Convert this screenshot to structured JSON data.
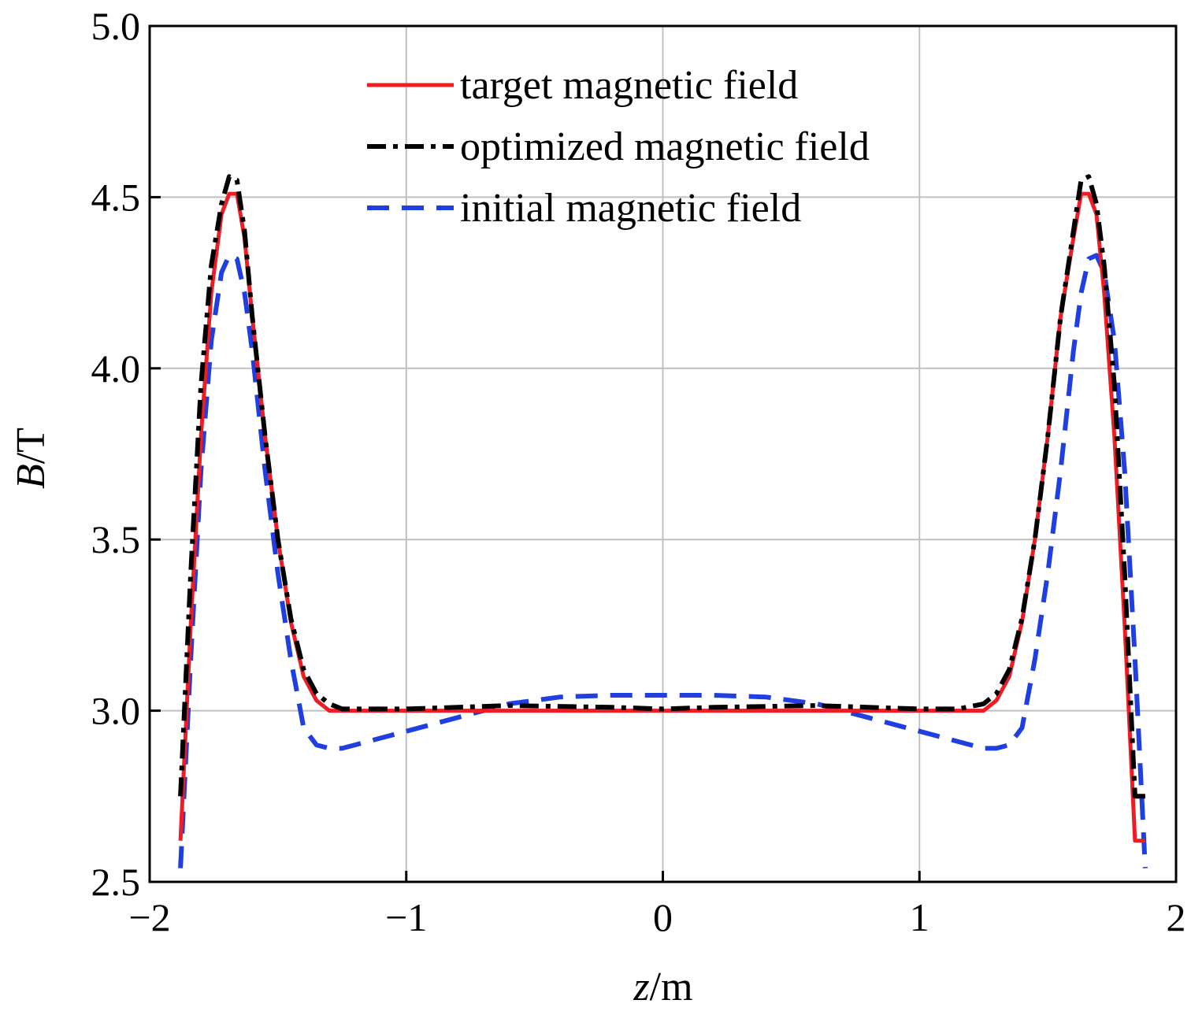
{
  "chart_data": {
    "type": "line",
    "xlabel_italic": "z",
    "xlabel_unit": "/m",
    "ylabel_italic": "B",
    "ylabel_unit": "/T",
    "xlim": [
      -2,
      2
    ],
    "ylim": [
      2.5,
      5.0
    ],
    "x_ticks": [
      -2,
      -1,
      0,
      1,
      2
    ],
    "x_tick_labels": [
      "−2",
      "−1",
      "0",
      "1",
      "2"
    ],
    "y_ticks": [
      2.5,
      3.0,
      3.5,
      4.0,
      4.5,
      5.0
    ],
    "y_tick_labels": [
      "2.5",
      "3.0",
      "3.5",
      "4.0",
      "4.5",
      "5.0"
    ],
    "grid": true,
    "legend_position": "top-center",
    "series": [
      {
        "name": "target magnetic field",
        "color": "#ee1c25",
        "style": "solid",
        "x": [
          -1.88,
          -1.84,
          -1.8,
          -1.76,
          -1.72,
          -1.69,
          -1.66,
          -1.63,
          -1.6,
          -1.55,
          -1.5,
          -1.45,
          -1.4,
          -1.35,
          -1.3,
          -1.25,
          -1.2,
          -1.0,
          -0.5,
          0,
          0.5,
          1.0,
          1.2,
          1.25,
          1.3,
          1.35,
          1.4,
          1.45,
          1.5,
          1.55,
          1.6,
          1.63,
          1.66,
          1.69,
          1.72,
          1.76,
          1.8,
          1.84,
          1.88
        ],
        "y": [
          2.62,
          3.25,
          3.8,
          4.22,
          4.45,
          4.51,
          4.51,
          4.38,
          4.15,
          3.8,
          3.5,
          3.26,
          3.1,
          3.03,
          3.0,
          3.0,
          3.0,
          3.0,
          3.0,
          3.0,
          3.0,
          3.0,
          3.0,
          3.0,
          3.03,
          3.1,
          3.26,
          3.5,
          3.8,
          4.15,
          4.38,
          4.51,
          4.51,
          4.45,
          4.22,
          3.8,
          3.25,
          2.62,
          2.62
        ]
      },
      {
        "name": "optimized magnetic field",
        "color": "#000000",
        "style": "dash-dot",
        "x": [
          -1.88,
          -1.84,
          -1.8,
          -1.76,
          -1.72,
          -1.69,
          -1.66,
          -1.63,
          -1.6,
          -1.55,
          -1.5,
          -1.45,
          -1.4,
          -1.35,
          -1.3,
          -1.25,
          -1.2,
          -1.0,
          -0.6,
          -0.2,
          0,
          0.2,
          0.6,
          1.0,
          1.15,
          1.25,
          1.3,
          1.35,
          1.4,
          1.45,
          1.5,
          1.55,
          1.6,
          1.63,
          1.66,
          1.69,
          1.72,
          1.76,
          1.8,
          1.84,
          1.88
        ],
        "y": [
          2.75,
          3.4,
          3.95,
          4.3,
          4.48,
          4.56,
          4.55,
          4.4,
          4.15,
          3.8,
          3.5,
          3.27,
          3.12,
          3.05,
          3.02,
          3.005,
          3.005,
          3.005,
          3.015,
          3.01,
          3.005,
          3.01,
          3.015,
          3.005,
          3.005,
          3.02,
          3.05,
          3.12,
          3.27,
          3.5,
          3.8,
          4.15,
          4.4,
          4.55,
          4.56,
          4.48,
          4.3,
          3.95,
          3.4,
          2.75,
          2.75
        ]
      },
      {
        "name": "initial magnetic field",
        "color": "#1f3fe0",
        "style": "dashed",
        "x": [
          -1.88,
          -1.84,
          -1.8,
          -1.76,
          -1.72,
          -1.69,
          -1.66,
          -1.63,
          -1.6,
          -1.55,
          -1.5,
          -1.45,
          -1.4,
          -1.35,
          -1.3,
          -1.25,
          -1.2,
          -1.1,
          -1.0,
          -0.8,
          -0.6,
          -0.4,
          -0.2,
          0,
          0.2,
          0.4,
          0.6,
          0.8,
          1.0,
          1.1,
          1.2,
          1.25,
          1.3,
          1.35,
          1.4,
          1.45,
          1.5,
          1.55,
          1.6,
          1.63,
          1.66,
          1.69,
          1.72,
          1.76,
          1.8,
          1.84,
          1.88
        ],
        "y": [
          2.54,
          3.15,
          3.7,
          4.08,
          4.28,
          4.33,
          4.32,
          4.22,
          4.05,
          3.7,
          3.4,
          3.15,
          2.95,
          2.9,
          2.89,
          2.89,
          2.9,
          2.92,
          2.94,
          2.98,
          3.02,
          3.04,
          3.045,
          3.045,
          3.045,
          3.04,
          3.02,
          2.98,
          2.94,
          2.92,
          2.9,
          2.89,
          2.89,
          2.9,
          2.95,
          3.15,
          3.4,
          3.7,
          4.05,
          4.22,
          4.32,
          4.33,
          4.28,
          4.08,
          3.7,
          3.15,
          2.54
        ]
      }
    ]
  }
}
